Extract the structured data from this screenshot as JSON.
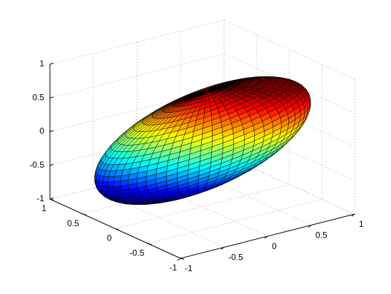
{
  "chart_data": {
    "type": "surface3d",
    "xlim": [
      -1,
      1
    ],
    "ylim": [
      -1,
      1
    ],
    "zlim": [
      -1,
      1
    ],
    "xticks": [
      -1,
      -0.5,
      0,
      0.5,
      1
    ],
    "yticks": [
      -1,
      -0.5,
      0,
      0.5,
      1
    ],
    "zticks": [
      -1,
      -0.5,
      0,
      0.5,
      1
    ],
    "grid": true,
    "colormap": "jet"
  }
}
